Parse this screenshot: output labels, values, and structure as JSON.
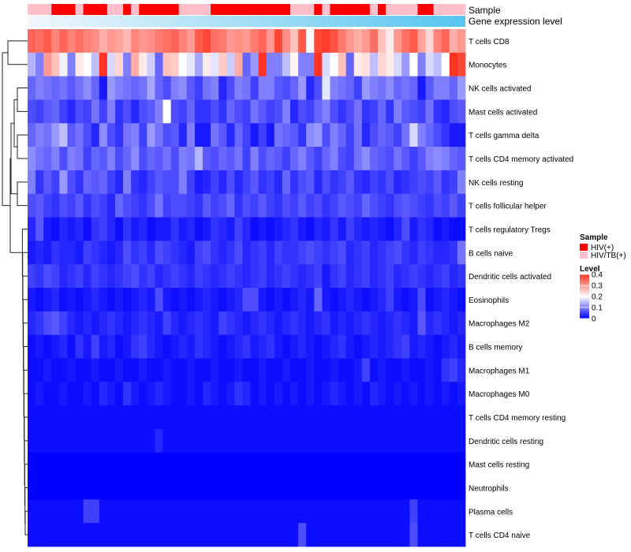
{
  "chart_data": {
    "type": "heatmap",
    "title": "",
    "annotations": {
      "sample_label": "Sample",
      "level_label": "Gene expression level",
      "sample_groups": [
        "HIV/TB(+)",
        "HIV/TB(+)",
        "HIV/TB(+)",
        "HIV(+)",
        "HIV(+)",
        "HIV(+)",
        "HIV/TB(+)",
        "HIV(+)",
        "HIV(+)",
        "HIV(+)",
        "HIV/TB(+)",
        "HIV/TB(+)",
        "HIV(+)",
        "HIV/TB(+)",
        "HIV(+)",
        "HIV(+)",
        "HIV(+)",
        "HIV(+)",
        "HIV(+)",
        "HIV/TB(+)",
        "HIV/TB(+)",
        "HIV/TB(+)",
        "HIV/TB(+)",
        "HIV(+)",
        "HIV(+)",
        "HIV(+)",
        "HIV(+)",
        "HIV(+)",
        "HIV(+)",
        "HIV(+)",
        "HIV(+)",
        "HIV(+)",
        "HIV(+)",
        "HIV/TB(+)",
        "HIV/TB(+)",
        "HIV/TB(+)",
        "HIV(+)",
        "HIV/TB(+)",
        "HIV(+)",
        "HIV(+)",
        "HIV(+)",
        "HIV(+)",
        "HIV(+)",
        "HIV/TB(+)",
        "HIV(+)",
        "HIV/TB(+)",
        "HIV/TB(+)",
        "HIV/TB(+)",
        "HIV/TB(+)",
        "HIV(+)",
        "HIV(+)",
        "HIV/TB(+)",
        "HIV/TB(+)",
        "HIV/TB(+)",
        "HIV/TB(+)"
      ],
      "gradient_start": "#f2f7fb",
      "gradient_end": "#56c5f0"
    },
    "rows": [
      "T cells CD8",
      "Monocytes",
      "NK cells activated",
      "Mast cells activated",
      "T cells gamma delta",
      "T cells CD4 memory activated",
      "NK cells resting",
      "T cells follicular helper",
      "T cells regulatory  Tregs",
      "B cells naive",
      "Dendritic cells activated",
      "Eosinophils",
      "Macrophages M2",
      "B cells memory",
      "Macrophages M1",
      "Macrophages M0",
      "T cells CD4 memory resting",
      "Dendritic cells resting",
      "Mast cells resting",
      "Neutrophils",
      "Plasma cells",
      "T cells CD4 naive"
    ],
    "row_levels": [
      [
        0.35,
        0.34,
        0.36,
        0.32,
        0.35,
        0.32,
        0.34,
        0.32,
        0.31,
        0.28,
        0.3,
        0.29,
        0.27,
        0.32,
        0.3,
        0.31,
        0.33,
        0.34,
        0.35,
        0.32,
        0.3,
        0.36,
        0.38,
        0.34,
        0.33,
        0.3,
        0.31,
        0.3,
        0.33,
        0.35,
        0.3,
        0.38,
        0.31,
        0.26,
        0.36,
        0.2,
        0.38,
        0.39,
        0.37,
        0.33,
        0.3,
        0.28,
        0.3,
        0.34,
        0.26,
        0.22,
        0.3,
        0.34,
        0.36,
        0.29,
        0.24,
        0.32,
        0.35,
        0.28,
        0.3
      ],
      [
        0.14,
        0.1,
        0.3,
        0.26,
        0.19,
        0.1,
        0.22,
        0.2,
        0.15,
        0.4,
        0.17,
        0.24,
        0.1,
        0.28,
        0.22,
        0.16,
        0.08,
        0.26,
        0.25,
        0.2,
        0.18,
        0.13,
        0.22,
        0.18,
        0.25,
        0.16,
        0.28,
        0.08,
        0.12,
        0.4,
        0.1,
        0.1,
        0.15,
        0.21,
        0.1,
        0.1,
        0.4,
        0.17,
        0.2,
        0.26,
        0.08,
        0.22,
        0.23,
        0.15,
        0.24,
        0.22,
        0.17,
        0.12,
        0.2,
        0.1,
        0.17,
        0.15,
        0.2,
        0.4,
        0.38
      ],
      [
        0.08,
        0.1,
        0.09,
        0.08,
        0.09,
        0.07,
        0.09,
        0.11,
        0.08,
        0.02,
        0.12,
        0.1,
        0.09,
        0.08,
        0.09,
        0.13,
        0.08,
        0.06,
        0.1,
        0.11,
        0.07,
        0.05,
        0.09,
        0.1,
        0.03,
        0.06,
        0.1,
        0.09,
        0.05,
        0.1,
        0.1,
        0.07,
        0.06,
        0.08,
        0.12,
        0.03,
        0.06,
        0.18,
        0.1,
        0.09,
        0.08,
        0.05,
        0.12,
        0.1,
        0.09,
        0.11,
        0.08,
        0.09,
        0.08,
        0.02,
        0.07,
        0.1,
        0.1,
        0.08,
        0.12
      ],
      [
        0.06,
        0.05,
        0.07,
        0.08,
        0.05,
        0.03,
        0.06,
        0.05,
        0.09,
        0.05,
        0.1,
        0.04,
        0.06,
        0.03,
        0.06,
        0.07,
        0.1,
        0.2,
        0.06,
        0.05,
        0.08,
        0.04,
        0.04,
        0.06,
        0.04,
        0.08,
        0.06,
        0.05,
        0.09,
        0.07,
        0.05,
        0.06,
        0.1,
        0.03,
        0.06,
        0.05,
        0.08,
        0.1,
        0.06,
        0.04,
        0.06,
        0.09,
        0.04,
        0.05,
        0.08,
        0.04,
        0.1,
        0.07,
        0.06,
        0.05,
        0.09,
        0.04,
        0.03,
        0.06,
        0.07
      ],
      [
        0.08,
        0.1,
        0.09,
        0.12,
        0.15,
        0.07,
        0.09,
        0.06,
        0.03,
        0.11,
        0.06,
        0.04,
        0.09,
        0.1,
        0.05,
        0.12,
        0.09,
        0.06,
        0.07,
        0.03,
        0.1,
        0.02,
        0.02,
        0.09,
        0.07,
        0.03,
        0.08,
        0.05,
        0.02,
        0.05,
        0.02,
        0.09,
        0.08,
        0.07,
        0.04,
        0.11,
        0.12,
        0.06,
        0.1,
        0.08,
        0.05,
        0.09,
        0.03,
        0.06,
        0.08,
        0.07,
        0.05,
        0.09,
        0.17,
        0.1,
        0.08,
        0.06,
        0.04,
        0.02,
        0.02
      ],
      [
        0.11,
        0.09,
        0.08,
        0.1,
        0.06,
        0.1,
        0.09,
        0.05,
        0.08,
        0.07,
        0.1,
        0.06,
        0.08,
        0.11,
        0.06,
        0.08,
        0.07,
        0.09,
        0.06,
        0.1,
        0.09,
        0.14,
        0.07,
        0.06,
        0.08,
        0.07,
        0.09,
        0.05,
        0.1,
        0.06,
        0.08,
        0.07,
        0.05,
        0.08,
        0.1,
        0.07,
        0.05,
        0.08,
        0.1,
        0.06,
        0.05,
        0.09,
        0.11,
        0.08,
        0.07,
        0.06,
        0.09,
        0.07,
        0.05,
        0.07,
        0.1,
        0.11,
        0.1,
        0.08,
        0.07
      ],
      [
        0.1,
        0.04,
        0.07,
        0.05,
        0.12,
        0.06,
        0.04,
        0.08,
        0.07,
        0.08,
        0.05,
        0.03,
        0.1,
        0.04,
        0.03,
        0.05,
        0.07,
        0.06,
        0.06,
        0.1,
        0.05,
        0.02,
        0.03,
        0.05,
        0.03,
        0.06,
        0.03,
        0.05,
        0.07,
        0.04,
        0.05,
        0.03,
        0.08,
        0.04,
        0.06,
        0.07,
        0.03,
        0.06,
        0.04,
        0.05,
        0.07,
        0.04,
        0.03,
        0.05,
        0.04,
        0.06,
        0.03,
        0.04,
        0.05,
        0.06,
        0.05,
        0.07,
        0.04,
        0.05,
        0.1
      ],
      [
        0.06,
        0.07,
        0.05,
        0.04,
        0.06,
        0.05,
        0.07,
        0.04,
        0.06,
        0.05,
        0.03,
        0.08,
        0.06,
        0.05,
        0.04,
        0.06,
        0.09,
        0.05,
        0.06,
        0.06,
        0.05,
        0.04,
        0.07,
        0.05,
        0.06,
        0.08,
        0.04,
        0.06,
        0.05,
        0.07,
        0.05,
        0.04,
        0.06,
        0.05,
        0.07,
        0.05,
        0.06,
        0.04,
        0.05,
        0.07,
        0.06,
        0.05,
        0.08,
        0.06,
        0.05,
        0.04,
        0.06,
        0.07,
        0.06,
        0.05,
        0.04,
        0.06,
        0.05,
        0.07,
        0.05
      ],
      [
        0.03,
        0.07,
        0.02,
        0.01,
        0.03,
        0.02,
        0.03,
        0.01,
        0.04,
        0.05,
        0.03,
        0.01,
        0.04,
        0.02,
        0.03,
        0.01,
        0.02,
        0.02,
        0.04,
        0.02,
        0.03,
        0.01,
        0.02,
        0.04,
        0.03,
        0.02,
        0.05,
        0.03,
        0.01,
        0.02,
        0.01,
        0.02,
        0.03,
        0.04,
        0.02,
        0.01,
        0.03,
        0.02,
        0.04,
        0.02,
        0.05,
        0.03,
        0.02,
        0.03,
        0.02,
        0.01,
        0.03,
        0.06,
        0.02,
        0.04,
        0.03,
        0.01,
        0.02,
        0.01,
        0.01
      ],
      [
        0.02,
        0.03,
        0.02,
        0.04,
        0.03,
        0.03,
        0.02,
        0.05,
        0.04,
        0.03,
        0.02,
        0.03,
        0.06,
        0.04,
        0.05,
        0.03,
        0.06,
        0.05,
        0.04,
        0.03,
        0.02,
        0.05,
        0.06,
        0.04,
        0.03,
        0.04,
        0.06,
        0.03,
        0.04,
        0.05,
        0.03,
        0.05,
        0.04,
        0.04,
        0.05,
        0.06,
        0.05,
        0.04,
        0.05,
        0.06,
        0.03,
        0.04,
        0.05,
        0.03,
        0.04,
        0.05,
        0.06,
        0.04,
        0.03,
        0.05,
        0.04,
        0.03,
        0.03,
        0.04,
        0.09
      ],
      [
        0.05,
        0.04,
        0.06,
        0.05,
        0.03,
        0.04,
        0.05,
        0.03,
        0.05,
        0.04,
        0.03,
        0.04,
        0.05,
        0.06,
        0.04,
        0.05,
        0.03,
        0.04,
        0.05,
        0.04,
        0.03,
        0.05,
        0.04,
        0.03,
        0.04,
        0.05,
        0.04,
        0.03,
        0.04,
        0.05,
        0.03,
        0.04,
        0.05,
        0.04,
        0.03,
        0.04,
        0.05,
        0.02,
        0.04,
        0.05,
        0.03,
        0.04,
        0.05,
        0.03,
        0.04,
        0.05,
        0.03,
        0.04,
        0.05,
        0.04,
        0.03,
        0.04,
        0.05,
        0.03,
        0.04
      ],
      [
        0.02,
        0.01,
        0.02,
        0.03,
        0.01,
        0.02,
        0.01,
        0.02,
        0.03,
        0.02,
        0.01,
        0.02,
        0.01,
        0.02,
        0.03,
        0.02,
        0.06,
        0.02,
        0.01,
        0.02,
        0.01,
        0.02,
        0.03,
        0.02,
        0.01,
        0.02,
        0.03,
        0.06,
        0.06,
        0.02,
        0.01,
        0.02,
        0.01,
        0.02,
        0.03,
        0.02,
        0.08,
        0.02,
        0.01,
        0.02,
        0.03,
        0.02,
        0.01,
        0.02,
        0.03,
        0.05,
        0.02,
        0.01,
        0.02,
        0.06,
        0.01,
        0.02,
        0.03,
        0.02,
        0.01
      ],
      [
        0.03,
        0.04,
        0.06,
        0.07,
        0.05,
        0.03,
        0.02,
        0.03,
        0.02,
        0.03,
        0.04,
        0.03,
        0.02,
        0.03,
        0.04,
        0.03,
        0.02,
        0.05,
        0.03,
        0.02,
        0.03,
        0.04,
        0.03,
        0.02,
        0.05,
        0.04,
        0.03,
        0.02,
        0.03,
        0.04,
        0.03,
        0.02,
        0.03,
        0.04,
        0.03,
        0.02,
        0.03,
        0.04,
        0.02,
        0.03,
        0.02,
        0.03,
        0.04,
        0.03,
        0.02,
        0.03,
        0.04,
        0.03,
        0.02,
        0.07,
        0.03,
        0.04,
        0.03,
        0.02,
        0.03
      ],
      [
        0.01,
        0.02,
        0.01,
        0.02,
        0.03,
        0.01,
        0.04,
        0.02,
        0.05,
        0.02,
        0.03,
        0.01,
        0.02,
        0.04,
        0.05,
        0.03,
        0.02,
        0.01,
        0.02,
        0.03,
        0.02,
        0.04,
        0.03,
        0.02,
        0.01,
        0.02,
        0.03,
        0.04,
        0.02,
        0.03,
        0.04,
        0.02,
        0.01,
        0.02,
        0.03,
        0.02,
        0.01,
        0.02,
        0.03,
        0.04,
        0.02,
        0.01,
        0.02,
        0.03,
        0.02,
        0.03,
        0.04,
        0.05,
        0.02,
        0.03,
        0.02,
        0.01,
        0.02,
        0.03,
        0.02
      ],
      [
        0.01,
        0.01,
        0.02,
        0.01,
        0.01,
        0.02,
        0.01,
        0.01,
        0.02,
        0.01,
        0.01,
        0.02,
        0.01,
        0.01,
        0.02,
        0.01,
        0.01,
        0.02,
        0.01,
        0.01,
        0.02,
        0.01,
        0.01,
        0.02,
        0.01,
        0.01,
        0.02,
        0.01,
        0.01,
        0.02,
        0.01,
        0.01,
        0.02,
        0.01,
        0.01,
        0.02,
        0.01,
        0.01,
        0.02,
        0.01,
        0.01,
        0.02,
        0.05,
        0.01,
        0.02,
        0.01,
        0.01,
        0.02,
        0.01,
        0.01,
        0.02,
        0.01,
        0.04,
        0.05,
        0.03
      ],
      [
        0.01,
        0.02,
        0.01,
        0.01,
        0.02,
        0.01,
        0.01,
        0.02,
        0.01,
        0.03,
        0.02,
        0.01,
        0.04,
        0.02,
        0.01,
        0.02,
        0.03,
        0.02,
        0.01,
        0.01,
        0.02,
        0.01,
        0.03,
        0.02,
        0.01,
        0.02,
        0.04,
        0.03,
        0.01,
        0.02,
        0.01,
        0.02,
        0.01,
        0.02,
        0.01,
        0.02,
        0.01,
        0.02,
        0.03,
        0.02,
        0.01,
        0.02,
        0.01,
        0.03,
        0.02,
        0.01,
        0.02,
        0.01,
        0.02,
        0.01,
        0.02,
        0.01,
        0.02,
        0.01,
        0.02
      ],
      [
        0.01,
        0.01,
        0.01,
        0.01,
        0.01,
        0.01,
        0.01,
        0.01,
        0.01,
        0.01,
        0.01,
        0.01,
        0.01,
        0.01,
        0.01,
        0.01,
        0.01,
        0.01,
        0.01,
        0.01,
        0.01,
        0.01,
        0.01,
        0.01,
        0.01,
        0.01,
        0.01,
        0.01,
        0.01,
        0.01,
        0.01,
        0.01,
        0.01,
        0.01,
        0.01,
        0.01,
        0.01,
        0.01,
        0.01,
        0.01,
        0.01,
        0.01,
        0.01,
        0.01,
        0.01,
        0.01,
        0.01,
        0.01,
        0.01,
        0.01,
        0.01,
        0.01,
        0.01,
        0.01,
        0.01
      ],
      [
        0.01,
        0.01,
        0.01,
        0.01,
        0.01,
        0.01,
        0.01,
        0.01,
        0.01,
        0.01,
        0.01,
        0.01,
        0.01,
        0.01,
        0.01,
        0.01,
        0.03,
        0.01,
        0.01,
        0.01,
        0.01,
        0.01,
        0.01,
        0.01,
        0.01,
        0.01,
        0.01,
        0.01,
        0.01,
        0.01,
        0.01,
        0.01,
        0.01,
        0.01,
        0.01,
        0.01,
        0.01,
        0.01,
        0.01,
        0.01,
        0.01,
        0.01,
        0.01,
        0.01,
        0.01,
        0.01,
        0.01,
        0.01,
        0.01,
        0.01,
        0.01,
        0.01,
        0.01,
        0.01,
        0.01
      ],
      [
        0.0,
        0.0,
        0.0,
        0.0,
        0.0,
        0.0,
        0.0,
        0.0,
        0.0,
        0.0,
        0.0,
        0.0,
        0.0,
        0.0,
        0.0,
        0.0,
        0.0,
        0.0,
        0.0,
        0.0,
        0.0,
        0.0,
        0.0,
        0.0,
        0.0,
        0.0,
        0.0,
        0.0,
        0.0,
        0.0,
        0.0,
        0.0,
        0.0,
        0.0,
        0.0,
        0.0,
        0.0,
        0.0,
        0.0,
        0.0,
        0.0,
        0.0,
        0.0,
        0.0,
        0.0,
        0.0,
        0.0,
        0.0,
        0.0,
        0.0,
        0.0,
        0.0,
        0.0,
        0.0,
        0.0
      ],
      [
        0.0,
        0.0,
        0.0,
        0.0,
        0.0,
        0.0,
        0.0,
        0.0,
        0.0,
        0.0,
        0.0,
        0.0,
        0.0,
        0.0,
        0.0,
        0.0,
        0.0,
        0.0,
        0.0,
        0.0,
        0.0,
        0.0,
        0.0,
        0.0,
        0.0,
        0.0,
        0.0,
        0.0,
        0.0,
        0.0,
        0.0,
        0.0,
        0.0,
        0.0,
        0.0,
        0.0,
        0.0,
        0.0,
        0.0,
        0.0,
        0.0,
        0.0,
        0.0,
        0.0,
        0.0,
        0.0,
        0.0,
        0.0,
        0.0,
        0.0,
        0.0,
        0.0,
        0.0,
        0.0,
        0.0
      ],
      [
        0.01,
        0.01,
        0.01,
        0.01,
        0.01,
        0.01,
        0.01,
        0.05,
        0.05,
        0.01,
        0.01,
        0.01,
        0.01,
        0.01,
        0.01,
        0.01,
        0.01,
        0.01,
        0.01,
        0.01,
        0.01,
        0.01,
        0.01,
        0.01,
        0.01,
        0.01,
        0.01,
        0.01,
        0.01,
        0.01,
        0.01,
        0.01,
        0.01,
        0.01,
        0.01,
        0.01,
        0.01,
        0.01,
        0.01,
        0.01,
        0.01,
        0.01,
        0.01,
        0.01,
        0.01,
        0.01,
        0.01,
        0.01,
        0.05,
        0.01,
        0.01,
        0.01,
        0.01,
        0.01,
        0.01
      ],
      [
        0.01,
        0.01,
        0.01,
        0.01,
        0.01,
        0.01,
        0.01,
        0.01,
        0.01,
        0.01,
        0.01,
        0.01,
        0.01,
        0.01,
        0.01,
        0.01,
        0.01,
        0.01,
        0.01,
        0.01,
        0.01,
        0.01,
        0.01,
        0.01,
        0.01,
        0.01,
        0.01,
        0.01,
        0.01,
        0.01,
        0.01,
        0.01,
        0.01,
        0.01,
        0.06,
        0.01,
        0.01,
        0.01,
        0.01,
        0.01,
        0.01,
        0.01,
        0.01,
        0.01,
        0.01,
        0.01,
        0.01,
        0.01,
        0.06,
        0.01,
        0.01,
        0.01,
        0.01,
        0.01,
        0.01
      ]
    ],
    "legend_sample": {
      "title": "Sample",
      "entries": [
        {
          "label": "HIV(+)",
          "color": "#ff0000"
        },
        {
          "label": "HIV/TB(+)",
          "color": "#ffc0cb"
        }
      ]
    },
    "legend_level": {
      "title": "Level",
      "ticks": [
        "0.4",
        "0.3",
        "0.2",
        "0.1",
        "0"
      ],
      "tick_values": [
        0.4,
        0.3,
        0.2,
        0.1,
        0
      ],
      "range": [
        0,
        0.4
      ],
      "colors": [
        "#0000ff",
        "#ffffff",
        "#ff3322"
      ]
    }
  }
}
